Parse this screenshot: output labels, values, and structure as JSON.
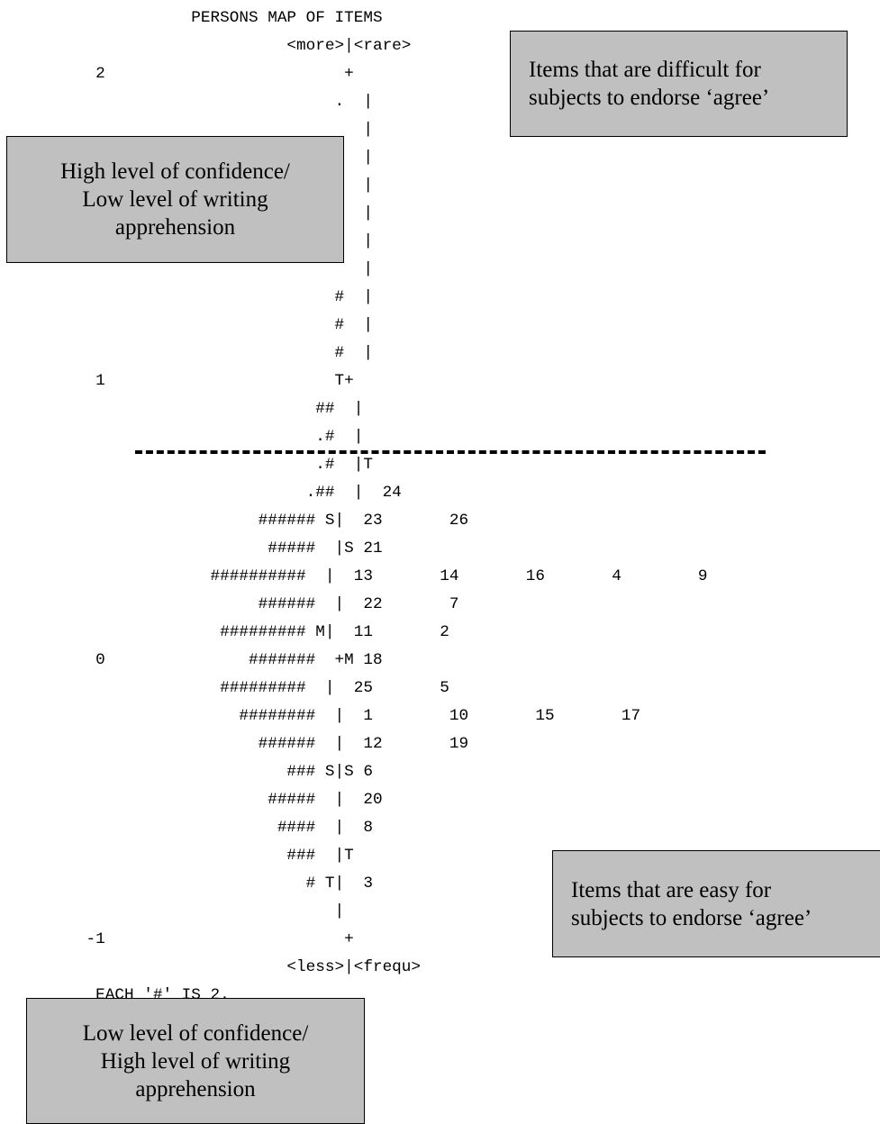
{
  "map": {
    "title": "PERSONS MAP OF ITEMS",
    "lines": [
      "                    PERSONS MAP OF ITEMS",
      "                              <more>|<rare>",
      "          2                         +",
      "                                   .  |",
      "                                      |",
      "                                      |",
      "                                      |",
      "                                      |",
      "                                      |",
      "                                      |",
      "                                   #  |",
      "                                   #  |",
      "                                   #  |",
      "          1                        T+",
      "                                 ##  |",
      "                                 .#  |",
      "                                 .#  |T",
      "                                .##  |  24",
      "                           ###### S|  23       26",
      "                            #####  |S 21",
      "                      ##########  |  13       14       16       4        9",
      "                           ######  |  22       7",
      "                       ######### M|  11       2",
      "          0               #######  +M 18",
      "                       #########  |  25       5",
      "                         ########  |  1        10       15       17",
      "                           ######  |  12       19",
      "                              ### S|S 6",
      "                            #####  |  20",
      "                             ####  |  8",
      "                              ###  |T",
      "                                # T|  3",
      "                                   |",
      "         -1                         +",
      "                              <less>|<frequ>",
      "          EACH '#' IS 2."
    ]
  },
  "callouts": {
    "top_right": [
      "Items that are difficult for",
      "subjects to endorse ‘agree’"
    ],
    "top_left": [
      "High level of confidence/",
      "Low level of writing",
      "apprehension"
    ],
    "bottom_right": [
      "Items that are easy for",
      "subjects to endorse ‘agree’"
    ],
    "bottom_left": [
      "Low level of confidence/",
      "High level of writing",
      "apprehension"
    ]
  },
  "colors": {
    "callout_fill": "#c0c0c0",
    "text": "#000000"
  }
}
